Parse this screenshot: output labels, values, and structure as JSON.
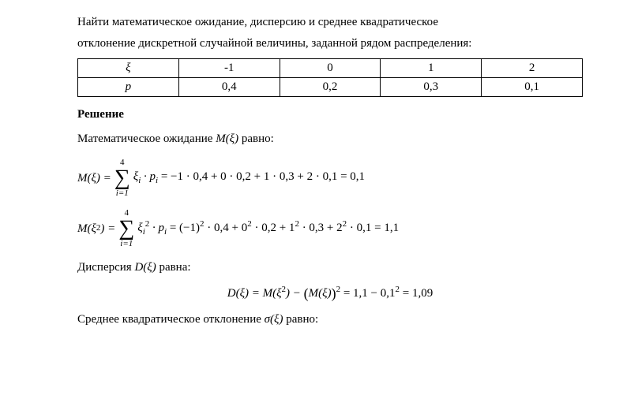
{
  "intro": {
    "line1": "Найти математическое ожидание, дисперсию и среднее квадратическое",
    "line2": "отклонение дискретной случайной величины, заданной рядом распределения:"
  },
  "table": {
    "row1_header": "ξ",
    "row1": [
      "-1",
      "0",
      "1",
      "2"
    ],
    "row2_header": "p",
    "row2": [
      "0,4",
      "0,2",
      "0,3",
      "0,1"
    ]
  },
  "solution_label": "Решение",
  "mexp_text": {
    "prefix": "Математическое ожидание ",
    "mfunc": "M(ξ)",
    "suffix": " равно:"
  },
  "formula_M": {
    "lhs": "M(ξ) = ",
    "sigma_top": "4",
    "sigma_bot": "i=1",
    "after_sigma": "ξ",
    "sub_i": "i",
    "dot_p": " · p",
    "eq_chain": " = −1 · 0,4 + 0 · 0,2 + 1 · 0,3 + 2 · 0,1 = 0,1"
  },
  "formula_M2": {
    "lhs": "M(ξ",
    "lhs_sup": "2",
    "lhs_close": ") = ",
    "sigma_top": "4",
    "sigma_bot": "i=1",
    "after_sigma": "ξ",
    "sub_i": "i",
    "sup2": "2",
    "dot_p": " · p",
    "eq_chain": " = (−1)",
    "t1s": "2",
    "t1": " · 0,4 + 0",
    "t2s": "2",
    "t2": " · 0,2 + 1",
    "t3s": "2",
    "t3": " · 0,3 + 2",
    "t4s": "2",
    "t4": " · 0,1 = 1,1"
  },
  "disp_text": {
    "prefix": "Дисперсия ",
    "dfunc": "D(ξ)",
    "suffix": " равна:"
  },
  "formula_D": {
    "lhs": "D(ξ) = M(ξ",
    "sup1": "2",
    "mid": ") − ",
    "open_big": "(",
    "mf": "M(ξ)",
    "close_big": ")",
    "sup2": "2",
    "rhs": " = 1,1 − 0,1",
    "sup3": "2",
    "result": " = 1,09"
  },
  "sigma_text": {
    "prefix": "Среднее квадратическое отклонение ",
    "sfunc": "σ(ξ)",
    "suffix": " равно:"
  }
}
